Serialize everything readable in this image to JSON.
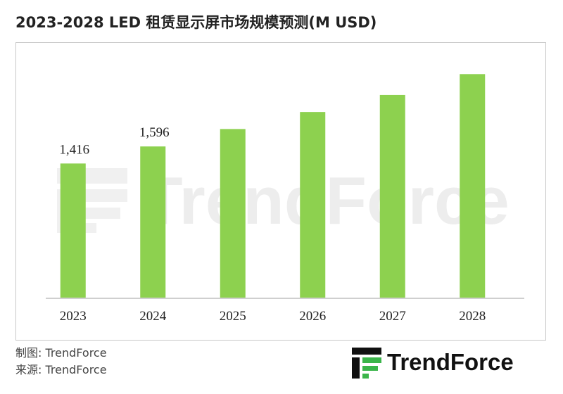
{
  "title": "2023-2028 LED 租赁显示屏市场规模预测(M USD)",
  "footer": {
    "chart_by": "制图: TrendForce",
    "source": "来源: TrendForce"
  },
  "brand": {
    "name": "TrendForce"
  },
  "watermark": {
    "name": "TrendForce"
  },
  "colors": {
    "bar": "#8dd14f",
    "brand_green": "#3bb54a",
    "axis": "#bfbfbf"
  },
  "chart_data": {
    "type": "bar",
    "title": "2023-2028 LED 租赁显示屏市场规模预测(M USD)",
    "categories": [
      "2023",
      "2024",
      "2025",
      "2026",
      "2027",
      "2028"
    ],
    "values": [
      1416,
      1596,
      1780,
      1960,
      2140,
      2360
    ],
    "data_labels": [
      "1,416",
      "1,596",
      "",
      "",
      "",
      ""
    ],
    "xlabel": "",
    "ylabel": "",
    "ylim": [
      0,
      2600
    ],
    "grid": false,
    "legend": "none"
  }
}
